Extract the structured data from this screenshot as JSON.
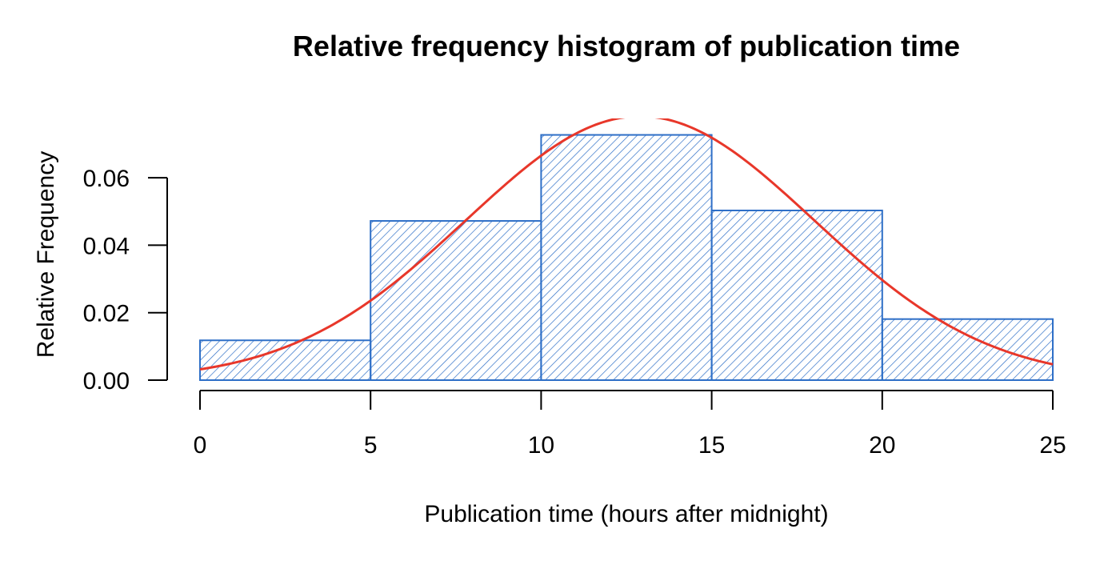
{
  "chart_data": {
    "type": "bar",
    "title": "Relative frequency histogram of publication time",
    "xlabel": "Publication time (hours after midnight)",
    "ylabel": "Relative Frequency",
    "bins": [
      {
        "from": 0,
        "to": 5,
        "value": 0.0118
      },
      {
        "from": 5,
        "to": 10,
        "value": 0.0472
      },
      {
        "from": 10,
        "to": 15,
        "value": 0.0727
      },
      {
        "from": 15,
        "to": 20,
        "value": 0.0503
      },
      {
        "from": 20,
        "to": 25,
        "value": 0.0181
      }
    ],
    "xlim": [
      0,
      25
    ],
    "ylim": [
      0,
      0.078
    ],
    "x_ticks": [
      "0",
      "5",
      "10",
      "15",
      "20",
      "25"
    ],
    "y_ticks": [
      "0.00",
      "0.02",
      "0.04",
      "0.06"
    ],
    "grid": false,
    "bar_fill": "hatched",
    "bar_color": "#2e6fc7",
    "curve": {
      "type": "normal-density",
      "mean": 12.9,
      "sd": 5.1,
      "color": "#e8372a"
    }
  }
}
